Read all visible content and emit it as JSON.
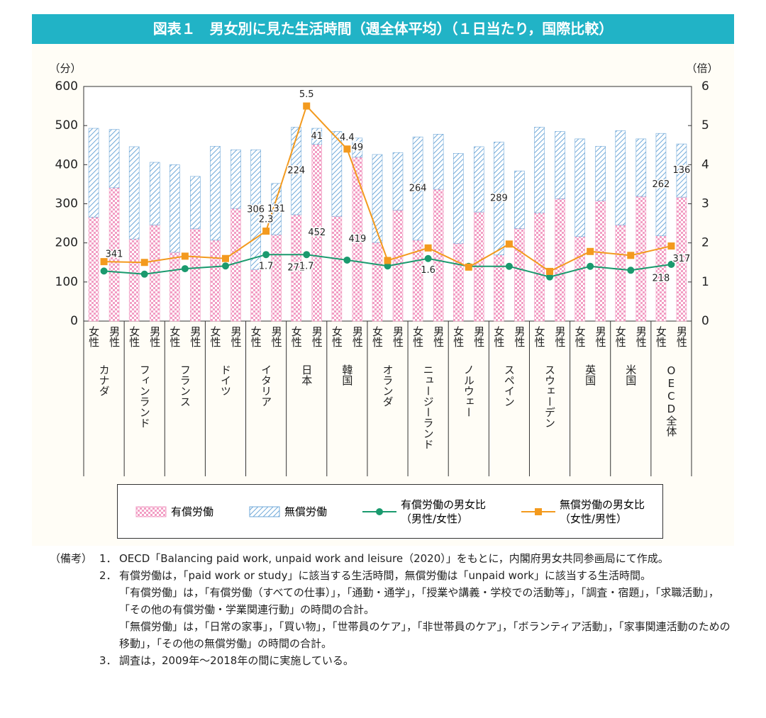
{
  "chart_data": {
    "type": "bar",
    "title": "図表１　男女別に見た生活時間（週全体平均）（１日当たり，国際比較）",
    "y_label": "（分）",
    "y2_label": "（倍）",
    "categories": [
      "カナダ",
      "フィンランド",
      "フランス",
      "ドイツ",
      "イタリア",
      "日本",
      "韓国",
      "オランダ",
      "ニュージーランド",
      "ノルウェー",
      "スペイン",
      "スウェーデン",
      "英国",
      "米国",
      "OECD全体"
    ],
    "sub_categories": [
      "女性",
      "男性"
    ],
    "ylim": [
      0,
      600
    ],
    "yticks": [
      0,
      100,
      200,
      300,
      400,
      500,
      600
    ],
    "y2lim": [
      0,
      6
    ],
    "y2ticks": [
      0,
      1,
      2,
      3,
      4,
      5,
      6
    ],
    "series": [
      {
        "name": "有償労働",
        "type": "bar",
        "color": "#f29ec4",
        "values": [
          [
            266,
            341
          ],
          [
            210,
            246
          ],
          [
            176,
            236
          ],
          [
            207,
            288
          ],
          [
            132,
            221
          ],
          [
            272,
            452
          ],
          [
            268,
            419
          ],
          [
            201,
            284
          ],
          [
            207,
            337
          ],
          [
            199,
            279
          ],
          [
            169,
            237
          ],
          [
            277,
            313
          ],
          [
            216,
            308
          ],
          [
            246,
            319
          ],
          [
            218,
            317
          ]
        ],
        "value_labels": [
          [
            null,
            "341"
          ],
          [
            null,
            null
          ],
          [
            null,
            null
          ],
          [
            null,
            null
          ],
          [
            null,
            null
          ],
          [
            "272",
            "452"
          ],
          [
            null,
            "419"
          ],
          [
            null,
            null
          ],
          [
            null,
            null
          ],
          [
            null,
            null
          ],
          [
            null,
            null
          ],
          [
            null,
            null
          ],
          [
            null,
            null
          ],
          [
            null,
            null
          ],
          [
            "218",
            "317"
          ]
        ]
      },
      {
        "name": "無償労働",
        "type": "bar",
        "color": "#6fa8d8",
        "values": [
          [
            227,
            149
          ],
          [
            236,
            160
          ],
          [
            224,
            134
          ],
          [
            240,
            150
          ],
          [
            306,
            131
          ],
          [
            224,
            41
          ],
          [
            217,
            49
          ],
          [
            225,
            147
          ],
          [
            264,
            141
          ],
          [
            230,
            167
          ],
          [
            289,
            147
          ],
          [
            219,
            172
          ],
          [
            250,
            139
          ],
          [
            241,
            147
          ],
          [
            262,
            136
          ]
        ],
        "value_labels": [
          [
            null,
            null
          ],
          [
            null,
            null
          ],
          [
            null,
            null
          ],
          [
            null,
            null
          ],
          [
            "306",
            "131"
          ],
          [
            "224",
            "41"
          ],
          [
            null,
            "49"
          ],
          [
            null,
            null
          ],
          [
            "264",
            null
          ],
          [
            null,
            null
          ],
          [
            "289",
            null
          ],
          [
            null,
            null
          ],
          [
            null,
            null
          ],
          [
            null,
            null
          ],
          [
            "262",
            "136"
          ]
        ]
      },
      {
        "name": "有償労働の男女比\n（男性/女性）",
        "type": "line",
        "axis": "y2",
        "color": "#1a9a6e",
        "values": [
          1.28,
          1.2,
          1.34,
          1.41,
          1.7,
          1.7,
          1.56,
          1.41,
          1.6,
          1.4,
          1.4,
          1.13,
          1.4,
          1.3,
          1.45
        ],
        "value_labels": [
          null,
          null,
          null,
          null,
          "1.7",
          "1.7",
          null,
          null,
          "1.6",
          null,
          null,
          null,
          null,
          null,
          null
        ]
      },
      {
        "name": "無償労働の男女比\n（女性/男性）",
        "type": "line",
        "axis": "y2",
        "color": "#f39a1e",
        "values": [
          1.52,
          1.5,
          1.66,
          1.6,
          2.3,
          5.5,
          4.4,
          1.55,
          1.87,
          1.38,
          1.97,
          1.27,
          1.78,
          1.68,
          1.92
        ],
        "value_labels": [
          null,
          null,
          null,
          null,
          "2.3",
          "5.5",
          "4.4",
          null,
          null,
          null,
          null,
          null,
          null,
          null,
          null
        ]
      }
    ]
  },
  "notes": {
    "label": "（備考）",
    "items": [
      {
        "number": "1．",
        "text": "OECD「Balancing paid work, unpaid work and leisure（2020）」をもとに，内閣府男女共同参画局にて作成。"
      },
      {
        "number": "2．",
        "text": "有償労働は，「paid work or study」に該当する生活時間，無償労働は「unpaid work」に該当する生活時間。",
        "details": [
          "「有償労働」は，「有償労働（すべての仕事）」，「通勤・通学」，「授業や講義・学校での活動等」，「調査・宿題」，「求職活動」，「その他の有償労働・学業関連行動」の時間の合計。",
          "「無償労働」は，「日常の家事」，「買い物」，「世帯員のケア」，「非世帯員のケア」，「ボランティア活動」，「家事関連活動のための移動」，「その他の無償労働」の時間の合計。"
        ]
      },
      {
        "number": "3．",
        "text": "調査は，2009年～2018年の間に実施している。"
      }
    ]
  }
}
